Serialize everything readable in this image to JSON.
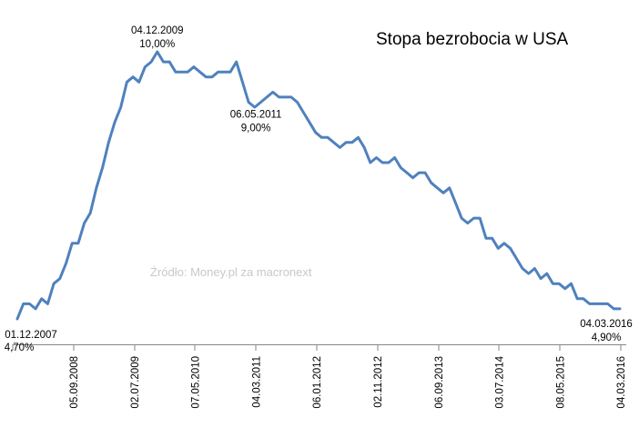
{
  "chart_data": {
    "type": "line",
    "title": "Stopa bezrobocia w USA",
    "source": "Źródło: Money.pl za macronext",
    "xlabel": "",
    "ylabel": "",
    "ylim": [
      4.5,
      10.3
    ],
    "grid": false,
    "legend": "none",
    "series": [
      {
        "color": "#4f81bd",
        "values": [
          4.7,
          5.0,
          5.0,
          4.9,
          5.1,
          5.0,
          5.4,
          5.5,
          5.8,
          6.2,
          6.2,
          6.6,
          6.8,
          7.3,
          7.7,
          8.2,
          8.6,
          8.9,
          9.4,
          9.5,
          9.4,
          9.7,
          9.8,
          10.0,
          9.8,
          9.8,
          9.6,
          9.6,
          9.6,
          9.7,
          9.6,
          9.5,
          9.5,
          9.6,
          9.6,
          9.6,
          9.8,
          9.4,
          9.0,
          8.9,
          9.0,
          9.1,
          9.2,
          9.1,
          9.1,
          9.1,
          9.0,
          8.8,
          8.6,
          8.4,
          8.3,
          8.3,
          8.2,
          8.1,
          8.2,
          8.2,
          8.3,
          8.1,
          7.8,
          7.9,
          7.8,
          7.8,
          7.9,
          7.7,
          7.6,
          7.5,
          7.6,
          7.6,
          7.4,
          7.3,
          7.2,
          7.3,
          7.0,
          6.7,
          6.6,
          6.7,
          6.7,
          6.3,
          6.3,
          6.1,
          6.2,
          6.1,
          5.9,
          5.7,
          5.6,
          5.7,
          5.5,
          5.6,
          5.4,
          5.4,
          5.3,
          5.4,
          5.1,
          5.1,
          5.0,
          5.0,
          5.0,
          5.0,
          4.9,
          4.9
        ]
      }
    ],
    "x_tick_labels": [
      "05.09.2008",
      "02.07.2009",
      "07.05.2010",
      "04.03.2011",
      "06.01.2012",
      "02.11.2012",
      "06.09.2013",
      "03.07.2014",
      "08.05.2015",
      "04.03.2016"
    ],
    "annotations": [
      {
        "index": 0,
        "date": "01.12.2007",
        "value": "4,70%"
      },
      {
        "index": 23,
        "date": "04.12.2009",
        "value": "10,00%"
      },
      {
        "index": 38,
        "date": "06.05.2011",
        "value": "9,00%"
      },
      {
        "index": 99,
        "date": "04.03.2016",
        "value": "4,90%"
      }
    ]
  }
}
